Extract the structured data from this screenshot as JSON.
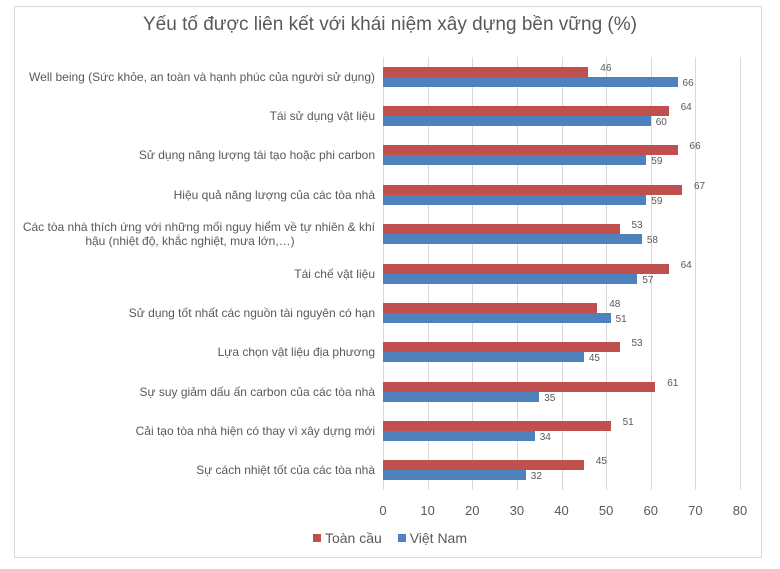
{
  "chart_data": {
    "type": "bar",
    "orientation": "horizontal",
    "title": "Yếu tố được liên kết với khái niệm xây dựng bền vững (%)",
    "xlabel": "",
    "ylabel": "",
    "xlim": [
      0,
      80
    ],
    "x_ticks": [
      "0",
      "10",
      "20",
      "30",
      "40",
      "50",
      "60",
      "70",
      "80"
    ],
    "grid": true,
    "legend_position": "bottom",
    "categories": [
      "Well being (Sức khỏe, an toàn và hạnh phúc của người sử dụng)",
      "Tái sử dụng vật liệu",
      "Sử dụng năng lượng tái tạo hoặc phi carbon",
      "Hiệu quả năng lượng của các tòa nhà",
      "Các tòa nhà thích ứng với những mối nguy hiểm về tự nhiên & khí hậu (nhiệt độ, khắc nghiệt, mưa lớn,…)",
      "Tái chế vật liệu",
      "Sử dụng tốt nhất các nguồn tài nguyên có hạn",
      "Lựa chọn vật liệu địa phương",
      "Sự suy giảm dấu ấn carbon của các tòa nhà",
      "Cải tạo tòa nhà hiện có thay vì xây dựng mới",
      "Sự cách nhiệt tốt của các tòa nhà"
    ],
    "series": [
      {
        "name": "Toàn cầu",
        "color": "#c0504d",
        "values": [
          46,
          64,
          66,
          67,
          53,
          64,
          48,
          53,
          61,
          51,
          45
        ]
      },
      {
        "name": "Việt Nam",
        "color": "#4f81bd",
        "values": [
          66,
          60,
          59,
          59,
          58,
          57,
          51,
          45,
          35,
          34,
          32
        ]
      }
    ]
  },
  "labels": {
    "title": "Yếu tố được liên kết với khái niệm xây dựng bền vững (%)",
    "cat0": "Well being (Sức khỏe, an toàn và hạnh phúc của người sử dụng)",
    "cat1": "Tái sử dụng vật liệu",
    "cat2": "Sử dụng năng lượng tái tạo hoặc phi carbon",
    "cat3": "Hiệu quả năng lượng của các tòa nhà",
    "cat4a": "Các tòa nhà thích ứng với những mối nguy hiểm về tự nhiên & khí",
    "cat4b": "hậu (nhiệt độ, khắc nghiệt, mưa lớn,…)",
    "cat5": "Tái chế vật liệu",
    "cat6": "Sử dụng tốt nhất các nguồn tài nguyên có hạn",
    "cat7": "Lựa chọn vật liệu địa phương",
    "cat8": "Sự suy giảm dấu ấn carbon của các tòa nhà",
    "cat9": "Cải tạo tòa nhà hiện có thay vì xây dựng mới",
    "cat10": "Sự cách nhiệt tốt của các tòa nhà",
    "legend_global": "Toàn cầu",
    "legend_vn": "Việt Nam"
  }
}
